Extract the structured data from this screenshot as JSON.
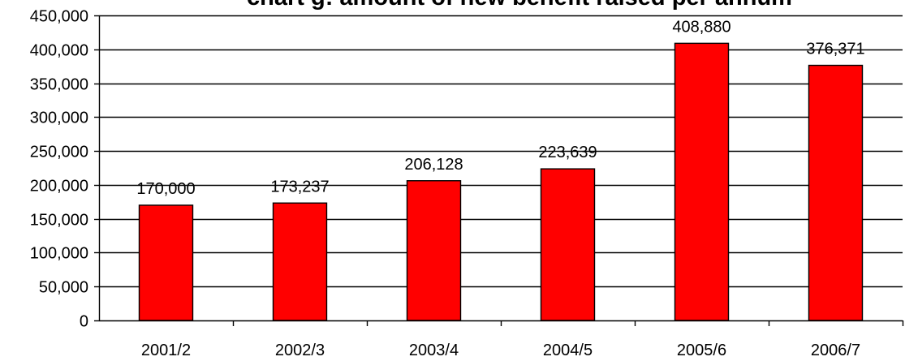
{
  "chart_data": {
    "type": "bar",
    "title": "chart g: amount of new benefit raised per annum",
    "xlabel": "",
    "ylabel": "",
    "categories": [
      "2001/2",
      "2002/3",
      "2003/4",
      "2004/5",
      "2005/6",
      "2006/7"
    ],
    "values": [
      170000,
      173237,
      206128,
      223639,
      408880,
      376371
    ],
    "data_labels": [
      "170,000",
      "173,237",
      "206,128",
      "223,639",
      "408,880",
      "376,371"
    ],
    "ylim": [
      0,
      450000
    ],
    "yticks": [
      0,
      50000,
      100000,
      150000,
      200000,
      250000,
      300000,
      350000,
      400000,
      450000
    ],
    "ytick_labels": [
      "0",
      "50,000",
      "100,000",
      "150,000",
      "200,000",
      "250,000",
      "300,000",
      "350,000",
      "400,000",
      "450,000"
    ],
    "grid": "horizontal",
    "legend": "none",
    "bar_color": "#ff0000",
    "bar_edge_color": "#000000"
  }
}
